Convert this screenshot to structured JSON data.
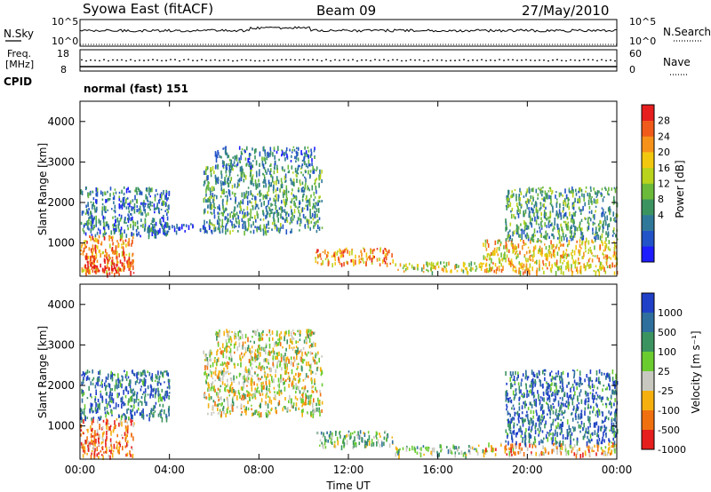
{
  "header": {
    "title": "Syowa East (fitACF)",
    "beam": "Beam 09",
    "date": "27/May/2010"
  },
  "top_panels": {
    "nsky_label": "N.Sky",
    "nsearch_label": "N.Search",
    "nsky_ticks": [
      "10^5",
      "10^0"
    ],
    "nsky_right_ticks": [
      "10^5",
      "10^0"
    ],
    "freq_label_1": "Freq.",
    "freq_label_2": "[MHz]",
    "freq_ticks": [
      "18",
      "8"
    ],
    "nave_label": "Nave",
    "nave_ticks": [
      "60",
      "0"
    ],
    "cpid_label": "CPID",
    "cpid_text": "normal (fast) 151"
  },
  "chart_data": [
    {
      "type": "heatmap",
      "panel": "power",
      "xlabel": "",
      "ylabel": "Slant Range [km]",
      "x_ticks": [
        "00:00",
        "04:00",
        "08:00",
        "12:00",
        "16:00",
        "20:00",
        "00:00"
      ],
      "x_range_hours": [
        0,
        24
      ],
      "y_ticks": [
        1000,
        2000,
        3000,
        4000
      ],
      "ylim": [
        180,
        4500
      ],
      "colorbar": {
        "label": "Power [dB]",
        "ticks": [
          "4",
          "8",
          "12",
          "16",
          "20",
          "24",
          "28"
        ],
        "colors": [
          "#1d1dff",
          "#2353c8",
          "#30789a",
          "#3b9460",
          "#6bba3a",
          "#b9d21c",
          "#f2c80e",
          "#f6921a",
          "#f05a1a",
          "#e61e1e"
        ]
      },
      "echo_regions": [
        {
          "t": [
            0.0,
            2.4
          ],
          "r": [
            250,
            1200
          ],
          "level": 7
        },
        {
          "t": [
            0.2,
            2.3
          ],
          "r": [
            300,
            700
          ],
          "level": 9
        },
        {
          "t": [
            0.0,
            4.0
          ],
          "r": [
            1200,
            2400
          ],
          "level": 2
        },
        {
          "t": [
            3.0,
            6.0
          ],
          "r": [
            1300,
            1500
          ],
          "level": 1
        },
        {
          "t": [
            5.5,
            10.8
          ],
          "r": [
            1300,
            2900
          ],
          "level": 3
        },
        {
          "t": [
            6.0,
            10.5
          ],
          "r": [
            2900,
            3400
          ],
          "level": 2
        },
        {
          "t": [
            10.5,
            14.0
          ],
          "r": [
            500,
            900
          ],
          "level": 7
        },
        {
          "t": [
            14.0,
            18.0
          ],
          "r": [
            300,
            550
          ],
          "level": 5
        },
        {
          "t": [
            18.0,
            24.0
          ],
          "r": [
            300,
            1100
          ],
          "level": 6
        },
        {
          "t": [
            19.0,
            24.0
          ],
          "r": [
            1100,
            2400
          ],
          "level": 3
        }
      ]
    },
    {
      "type": "heatmap",
      "panel": "velocity",
      "xlabel": "Time UT",
      "ylabel": "Slant Range [km]",
      "x_ticks": [
        "00:00",
        "04:00",
        "08:00",
        "12:00",
        "16:00",
        "20:00",
        "00:00"
      ],
      "x_range_hours": [
        0,
        24
      ],
      "y_ticks": [
        1000,
        2000,
        3000,
        4000
      ],
      "ylim": [
        180,
        4500
      ],
      "colorbar": {
        "label": "Velocity [m s⁻¹]",
        "ticks": [
          "1000",
          "500",
          "100",
          "25",
          "-25",
          "-100",
          "-500",
          "-1000"
        ],
        "colors": [
          "#2040c8",
          "#2f6f9e",
          "#3b9460",
          "#6bcc30",
          "#c8c8c0",
          "#f5b010",
          "#f07010",
          "#e61e1e"
        ]
      },
      "echo_regions": [
        {
          "t": [
            0.0,
            2.4
          ],
          "r": [
            250,
            1200
          ],
          "level": 6
        },
        {
          "t": [
            0.0,
            4.0
          ],
          "r": [
            1200,
            2400
          ],
          "level": 1
        },
        {
          "t": [
            5.5,
            10.8
          ],
          "r": [
            1300,
            2900
          ],
          "level": 4
        },
        {
          "t": [
            6.0,
            10.5
          ],
          "r": [
            2900,
            3400
          ],
          "level": 4
        },
        {
          "t": [
            10.5,
            14.0
          ],
          "r": [
            500,
            900
          ],
          "level": 3
        },
        {
          "t": [
            14.0,
            18.0
          ],
          "r": [
            300,
            550
          ],
          "level": 3
        },
        {
          "t": [
            18.0,
            24.0
          ],
          "r": [
            300,
            600
          ],
          "level": 5
        },
        {
          "t": [
            19.0,
            24.0
          ],
          "r": [
            600,
            2400
          ],
          "level": 1
        }
      ]
    }
  ]
}
